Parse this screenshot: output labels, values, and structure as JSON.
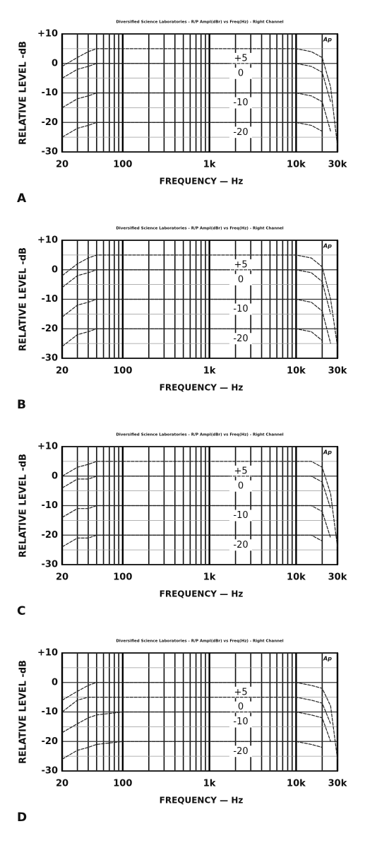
{
  "chart_data": [
    {
      "type": "line",
      "panel": "A",
      "title": "Diversified Science Laboratories - R/P Ampl(dBr) vs Freq(Hz) - Right Channel",
      "logo": "Ap",
      "x_label": "FREQUENCY — Hz",
      "y_label": "RELATIVE LEVEL -dB",
      "xscale": "log",
      "grid": true,
      "xlim": [
        20,
        30000
      ],
      "ylim": [
        -30,
        10
      ],
      "xticks": [
        20,
        100,
        {
          "value": 1000,
          "label": "1k"
        },
        {
          "value": 10000,
          "label": "10k"
        },
        {
          "value": 30000,
          "label": "30k"
        }
      ],
      "xminorticks": [
        30,
        40,
        50,
        60,
        70,
        80,
        90,
        200,
        300,
        400,
        500,
        600,
        700,
        800,
        900,
        2000,
        3000,
        4000,
        5000,
        6000,
        7000,
        8000,
        9000,
        20000
      ],
      "yticks": [
        {
          "value": 10,
          "label": "+10"
        },
        0,
        -10,
        -20,
        -30
      ],
      "yminorticks": [
        5,
        -5,
        -15,
        -25
      ],
      "x": [
        20,
        30,
        40,
        50,
        100,
        1000,
        10000,
        15000,
        20000,
        25000,
        30000
      ],
      "series": [
        {
          "name": "+5",
          "color": "#222",
          "values": [
            -1,
            2,
            4,
            5,
            5,
            5,
            5,
            4,
            2,
            -8,
            -28
          ]
        },
        {
          "name": "0",
          "color": "#222",
          "values": [
            -5,
            -2,
            -1,
            0,
            0,
            0,
            0,
            -1,
            -3,
            -13,
            null
          ]
        },
        {
          "name": "-10",
          "color": "#222",
          "values": [
            -15,
            -12,
            -11,
            -10,
            -10,
            -10,
            -10,
            -11,
            -13,
            -23,
            null
          ]
        },
        {
          "name": "-20",
          "color": "#222",
          "values": [
            -25,
            -22,
            -21,
            -20,
            -20,
            -20,
            -20,
            -21,
            -23,
            null,
            null
          ]
        }
      ]
    },
    {
      "type": "line",
      "panel": "B",
      "title": "Diversified Science Laboratories - R/P Ampl(dBr) vs Freq(Hz) - Right Channel",
      "logo": "Ap",
      "x_label": "FREQUENCY — Hz",
      "y_label": "RELATIVE LEVEL -dB",
      "xscale": "log",
      "grid": true,
      "xlim": [
        20,
        30000
      ],
      "ylim": [
        -30,
        10
      ],
      "xticks": [
        20,
        100,
        {
          "value": 1000,
          "label": "1k"
        },
        {
          "value": 10000,
          "label": "10k"
        },
        {
          "value": 30000,
          "label": "30k"
        }
      ],
      "xminorticks": [
        30,
        40,
        50,
        60,
        70,
        80,
        90,
        200,
        300,
        400,
        500,
        600,
        700,
        800,
        900,
        2000,
        3000,
        4000,
        5000,
        6000,
        7000,
        8000,
        9000,
        20000
      ],
      "yticks": [
        {
          "value": 10,
          "label": "+10"
        },
        0,
        -10,
        -20,
        -30
      ],
      "yminorticks": [
        5,
        -5,
        -15,
        -25
      ],
      "x": [
        20,
        30,
        40,
        50,
        100,
        1000,
        10000,
        15000,
        20000,
        25000,
        30000
      ],
      "series": [
        {
          "name": "+5",
          "color": "#222",
          "values": [
            -2,
            2,
            4,
            5,
            5,
            5,
            5,
            4,
            1,
            -10,
            -26
          ]
        },
        {
          "name": "0",
          "color": "#222",
          "values": [
            -6,
            -2,
            -1,
            0,
            0,
            0,
            0,
            -1,
            -4,
            -15,
            null
          ]
        },
        {
          "name": "-10",
          "color": "#222",
          "values": [
            -16,
            -12,
            -11,
            -10,
            -10,
            -10,
            -10,
            -11,
            -14,
            -25,
            null
          ]
        },
        {
          "name": "-20",
          "color": "#222",
          "values": [
            -26,
            -22,
            -21,
            -20,
            -20,
            -20,
            -20,
            -21,
            -24,
            null,
            null
          ]
        }
      ]
    },
    {
      "type": "line",
      "panel": "C",
      "title": "Diversified Science Laboratories - R/P Ampl(dBr) vs Freq(Hz) - Right Channel",
      "logo": "Ap",
      "x_label": "FREQUENCY — Hz",
      "y_label": "RELATIVE LEVEL -dB",
      "xscale": "log",
      "grid": true,
      "xlim": [
        20,
        30000
      ],
      "ylim": [
        -30,
        10
      ],
      "xticks": [
        20,
        100,
        {
          "value": 1000,
          "label": "1k"
        },
        {
          "value": 10000,
          "label": "10k"
        },
        {
          "value": 30000,
          "label": "30k"
        }
      ],
      "xminorticks": [
        30,
        40,
        50,
        60,
        70,
        80,
        90,
        200,
        300,
        400,
        500,
        600,
        700,
        800,
        900,
        2000,
        3000,
        4000,
        5000,
        6000,
        7000,
        8000,
        9000,
        20000
      ],
      "yticks": [
        {
          "value": 10,
          "label": "+10"
        },
        0,
        -10,
        -20,
        -30
      ],
      "yminorticks": [
        5,
        -5,
        -15,
        -25
      ],
      "x": [
        20,
        30,
        40,
        50,
        100,
        1000,
        10000,
        15000,
        20000,
        25000,
        30000
      ],
      "series": [
        {
          "name": "+5",
          "color": "#222",
          "values": [
            0,
            3,
            4,
            5,
            5,
            5,
            5,
            5,
            3,
            -6,
            -24
          ]
        },
        {
          "name": "0",
          "color": "#222",
          "values": [
            -4,
            -1,
            -1,
            0,
            0,
            0,
            0,
            0,
            -2,
            -11,
            null
          ]
        },
        {
          "name": "-10",
          "color": "#222",
          "values": [
            -14,
            -11,
            -11,
            -10,
            -10,
            -10,
            -10,
            -10,
            -12,
            -21,
            null
          ]
        },
        {
          "name": "-20",
          "color": "#222",
          "values": [
            -24,
            -21,
            -21,
            -20,
            -20,
            -20,
            -20,
            -20,
            -22,
            null,
            null
          ]
        }
      ]
    },
    {
      "type": "line",
      "panel": "D",
      "title": "Diversified Science Laboratories - R/P Ampl(dBr) vs Freq(Hz) - Right Channel",
      "logo": "Ap",
      "x_label": "FREQUENCY — Hz",
      "y_label": "RELATIVE LEVEL -dB",
      "xscale": "log",
      "grid": true,
      "xlim": [
        20,
        30000
      ],
      "ylim": [
        -30,
        10
      ],
      "xticks": [
        20,
        100,
        {
          "value": 1000,
          "label": "1k"
        },
        {
          "value": 10000,
          "label": "10k"
        },
        {
          "value": 30000,
          "label": "30k"
        }
      ],
      "xminorticks": [
        30,
        40,
        50,
        60,
        70,
        80,
        90,
        200,
        300,
        400,
        500,
        600,
        700,
        800,
        900,
        2000,
        3000,
        4000,
        5000,
        6000,
        7000,
        8000,
        9000,
        20000
      ],
      "yticks": [
        {
          "value": 10,
          "label": "+10"
        },
        0,
        -10,
        -20,
        -30
      ],
      "yminorticks": [
        5,
        -5,
        -15,
        -25
      ],
      "x": [
        20,
        30,
        40,
        50,
        100,
        1000,
        10000,
        15000,
        20000,
        25000,
        30000
      ],
      "series": [
        {
          "name": "+5",
          "color": "#222",
          "values": [
            -6,
            -3,
            -1,
            0,
            0,
            0,
            0,
            -1,
            -2,
            -8,
            -26
          ]
        },
        {
          "name": "0",
          "color": "#222",
          "values": [
            -10,
            -6,
            -5,
            -5,
            -5,
            -5,
            -5,
            -6,
            -7,
            -14,
            null
          ]
        },
        {
          "name": "-10",
          "color": "#222",
          "values": [
            -17,
            -14,
            -12,
            -11,
            -10,
            -10,
            -10,
            -11,
            -12,
            -20,
            null
          ]
        },
        {
          "name": "-20",
          "color": "#222",
          "values": [
            -26,
            -23,
            -22,
            -21,
            -20,
            -20,
            -20,
            -21,
            -22,
            null,
            null
          ]
        }
      ]
    }
  ]
}
